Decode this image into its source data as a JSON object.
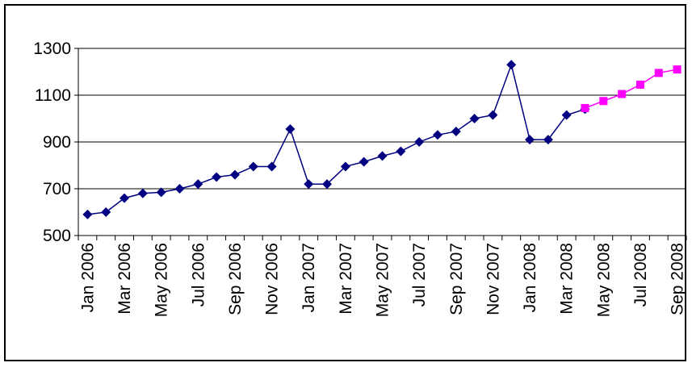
{
  "chart_data": {
    "type": "line",
    "title": "",
    "xlabel": "",
    "ylabel": "",
    "ylim": [
      500,
      1300
    ],
    "yticks": [
      500,
      700,
      900,
      1100,
      1300
    ],
    "grid": "horizontal",
    "legend": "none",
    "x": [
      "Jan 2006",
      "Feb 2006",
      "Mar 2006",
      "Apr 2006",
      "May 2006",
      "Jun 2006",
      "Jul 2006",
      "Aug 2006",
      "Sep 2006",
      "Oct 2006",
      "Nov 2006",
      "Dec 2006",
      "Jan 2007",
      "Feb 2007",
      "Mar 2007",
      "Apr 2007",
      "May 2007",
      "Jun 2007",
      "Jul 2007",
      "Aug 2007",
      "Sep 2007",
      "Oct 2007",
      "Nov 2007",
      "Dec 2007",
      "Jan 2008",
      "Feb 2008",
      "Mar 2008",
      "Apr 2008",
      "May 2008",
      "Jun 2008",
      "Jul 2008",
      "Aug 2008",
      "Sep 2008"
    ],
    "xtick_labels": [
      "Jan 2006",
      "Mar 2006",
      "May 2006",
      "Jul 2006",
      "Sep 2006",
      "Nov 2006",
      "Jan 2007",
      "Mar 2007",
      "May 2007",
      "Jul 2007",
      "Sep 2007",
      "Nov 2007",
      "Jan 2008",
      "Mar 2008",
      "May 2008",
      "Jul 2008",
      "Sep 2008"
    ],
    "series": [
      {
        "color": "#000080",
        "marker": "diamond",
        "values": [
          590,
          600,
          660,
          680,
          685,
          700,
          720,
          750,
          760,
          795,
          795,
          955,
          720,
          720,
          795,
          815,
          840,
          860,
          900,
          930,
          945,
          1000,
          1015,
          1230,
          910,
          910,
          1015,
          1040,
          null,
          null,
          null,
          null,
          null
        ]
      },
      {
        "color": "#ff00ff",
        "marker": "square",
        "values": [
          null,
          null,
          null,
          null,
          null,
          null,
          null,
          null,
          null,
          null,
          null,
          null,
          null,
          null,
          null,
          null,
          null,
          null,
          null,
          null,
          null,
          null,
          null,
          null,
          null,
          null,
          null,
          1045,
          1075,
          1105,
          1145,
          1195,
          1210
        ]
      }
    ]
  }
}
